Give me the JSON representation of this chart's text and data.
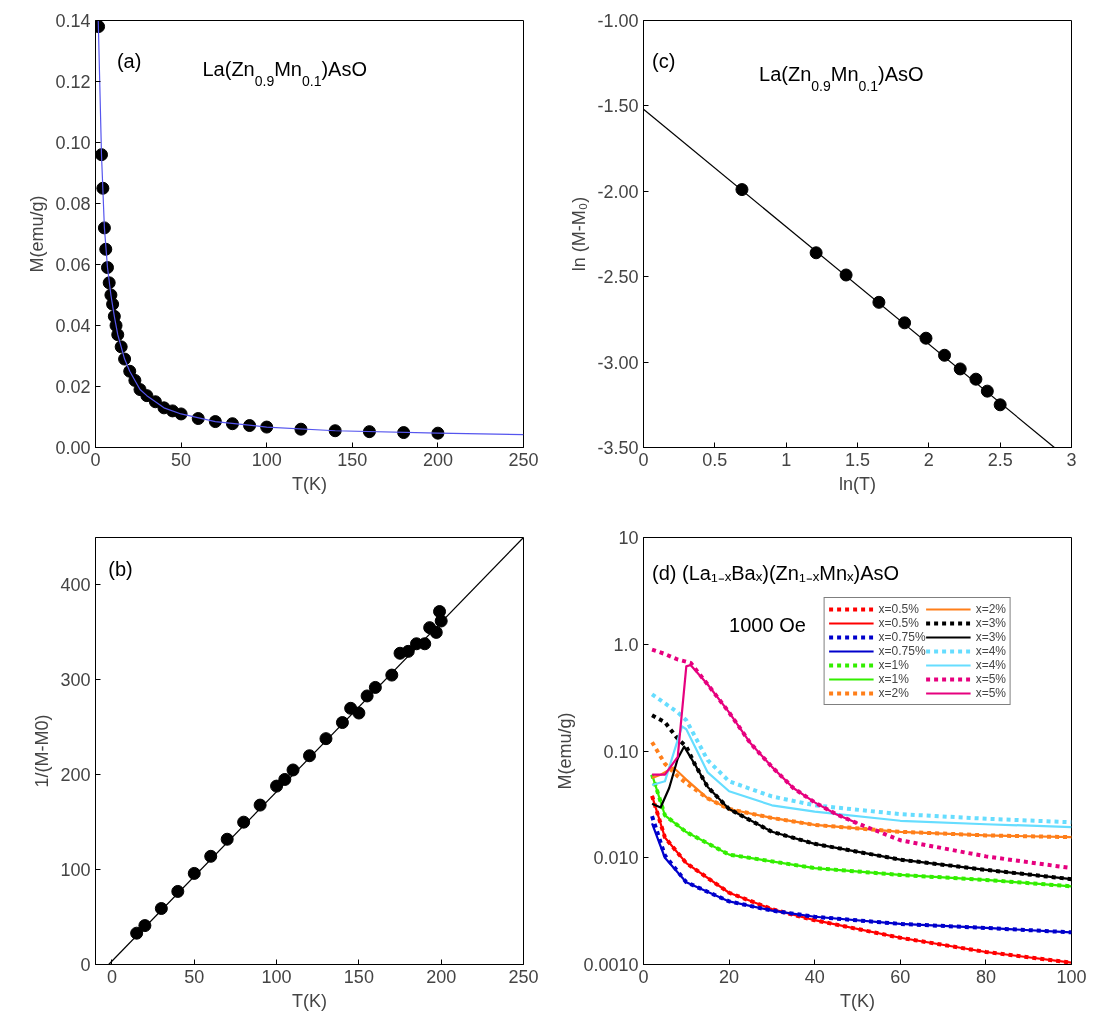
{
  "chart_data": [
    {
      "type": "scatter",
      "xlabel": "T(K)",
      "ylabel": "M(emu/g)",
      "annotations": [
        "(a)",
        "La(Zn$_{0.9}$Mn$_{0.1}$)AsO"
      ],
      "xlim": [
        0,
        250
      ],
      "ylim": [
        0,
        0.14
      ],
      "xticks": [
        0,
        50,
        100,
        150,
        200,
        250
      ],
      "yticks": [
        {
          "value": 0,
          "label": "0.00"
        },
        {
          "value": 0.02,
          "label": "0.02"
        },
        {
          "value": 0.04,
          "label": "0.04"
        },
        {
          "value": 0.06,
          "label": "0.06"
        },
        {
          "value": 0.08,
          "label": "0.08"
        },
        {
          "value": 0.1,
          "label": "0.10"
        },
        {
          "value": 0.12,
          "label": "0.12"
        },
        {
          "value": 0.14,
          "label": "0.14"
        }
      ],
      "grid": false,
      "legend": false,
      "series": [
        {
          "type": "scatter",
          "color": "#000000",
          "marker": "circle",
          "x": [
            1.8,
            3.5,
            4.3,
            5.2,
            6,
            7,
            8,
            9,
            10,
            11,
            12,
            13,
            15,
            17,
            20,
            23,
            26,
            30,
            35,
            40,
            45,
            50,
            60,
            70,
            80,
            90,
            100,
            120,
            140,
            160,
            180,
            200
          ],
          "values": [
            0.138,
            0.096,
            0.085,
            0.072,
            0.065,
            0.059,
            0.054,
            0.05,
            0.047,
            0.043,
            0.04,
            0.037,
            0.033,
            0.029,
            0.025,
            0.022,
            0.019,
            0.017,
            0.015,
            0.013,
            0.012,
            0.011,
            0.0095,
            0.0085,
            0.0078,
            0.0072,
            0.0067,
            0.006,
            0.0055,
            0.0052,
            0.0049,
            0.0047
          ]
        },
        {
          "type": "line",
          "color": "#5555ee",
          "marker": "none",
          "line_style": "solid",
          "x": [
            1.6,
            3.5,
            5.2,
            7,
            9,
            11,
            13,
            17,
            20,
            26,
            30,
            40,
            50,
            70,
            100,
            140,
            200,
            250
          ],
          "values": [
            0.14,
            0.096,
            0.072,
            0.059,
            0.05,
            0.043,
            0.037,
            0.029,
            0.025,
            0.019,
            0.017,
            0.013,
            0.011,
            0.0085,
            0.0067,
            0.0055,
            0.0047,
            0.0042
          ]
        }
      ]
    },
    {
      "type": "scatter",
      "xlabel": "ln(T)",
      "ylabel": "ln (M-M₀)",
      "annotations": [
        "(c)",
        "La(Zn$_{0.9}$Mn$_{0.1}$)AsO"
      ],
      "xlim": [
        0,
        3
      ],
      "ylim": [
        -3.5,
        -1.0
      ],
      "xticks": [
        0,
        0.5,
        1,
        1.5,
        2,
        2.5,
        3
      ],
      "yticks": [
        {
          "value": -3.5,
          "label": "-3.50"
        },
        {
          "value": -3.0,
          "label": "-3.00"
        },
        {
          "value": -2.5,
          "label": "-2.50"
        },
        {
          "value": -2.0,
          "label": "-2.00"
        },
        {
          "value": -1.5,
          "label": "-1.50"
        },
        {
          "value": -1.0,
          "label": "-1.00"
        }
      ],
      "grid": false,
      "legend": false,
      "series": [
        {
          "type": "scatter",
          "color": "#000000",
          "marker": "circle",
          "x": [
            0.69,
            1.21,
            1.42,
            1.65,
            1.83,
            1.98,
            2.11,
            2.22,
            2.33,
            2.41,
            2.5
          ],
          "values": [
            -1.99,
            -2.36,
            -2.49,
            -2.65,
            -2.77,
            -2.86,
            -2.96,
            -3.04,
            -3.1,
            -3.17,
            -3.25
          ]
        },
        {
          "type": "line",
          "color": "#000000",
          "marker": "none",
          "line_style": "solid",
          "x": [
            0,
            2.88
          ],
          "values": [
            -1.52,
            -3.5
          ]
        }
      ]
    },
    {
      "type": "scatter",
      "xlabel": "T(K)",
      "ylabel": "1/(M-M0)",
      "annotations": [
        "(b)"
      ],
      "xlim": [
        -10,
        250
      ],
      "ylim": [
        0,
        450
      ],
      "xticks": [
        0,
        50,
        100,
        150,
        200,
        250
      ],
      "yticks": [
        0,
        100,
        200,
        300,
        400
      ],
      "grid": false,
      "legend": false,
      "series": [
        {
          "type": "scatter",
          "color": "#000000",
          "marker": "circle",
          "x": [
            15,
            20,
            30,
            40,
            50,
            60,
            70,
            80,
            90,
            100,
            105,
            110,
            120,
            130,
            140,
            145,
            150,
            155,
            160,
            170,
            175,
            180,
            185,
            190,
            193,
            197,
            199,
            200
          ],
          "values": [
            33,
            41,
            59,
            77,
            96,
            114,
            132,
            150,
            168,
            188,
            195,
            205,
            220,
            238,
            255,
            270,
            265,
            283,
            292,
            305,
            328,
            330,
            338,
            338,
            355,
            350,
            372,
            362
          ]
        },
        {
          "type": "line",
          "color": "#000000",
          "marker": "none",
          "line_style": "solid",
          "x": [
            -2,
            250
          ],
          "values": [
            0,
            450
          ]
        }
      ]
    },
    {
      "type": "line",
      "xlabel": "T(K)",
      "ylabel": "M(emu/g)",
      "annotations": [
        "(d) (La₁₋ₓBaₓ)(Zn₁₋ₓMnₓ)AsO",
        "1000 Oe"
      ],
      "log": true,
      "xlim": [
        0,
        100
      ],
      "ylim": [
        0.001,
        10
      ],
      "xticks": [
        0,
        20,
        40,
        60,
        80,
        100
      ],
      "yticks": [
        {
          "value": 0.001,
          "label": "0.0010"
        },
        {
          "value": 0.01,
          "label": "0.010"
        },
        {
          "value": 0.1,
          "label": "0.10"
        },
        {
          "value": 1,
          "label": "1.0"
        },
        {
          "value": 10,
          "label": "10"
        }
      ],
      "grid": false,
      "legend": "top right",
      "marker": "none",
      "series": [
        {
          "name": "x=0.5%",
          "color": "#ff0000",
          "line_style": "dotted",
          "x": [
            2,
            5,
            10,
            20,
            30,
            40,
            60,
            80,
            100
          ],
          "values": [
            0.038,
            0.0155,
            0.0089,
            0.0047,
            0.0033,
            0.0026,
            0.00178,
            0.00131,
            0.00104
          ]
        },
        {
          "name": "x=0.5%",
          "color": "#ff0000",
          "line_style": "solid",
          "x": [
            2,
            5,
            10,
            20,
            30,
            40,
            60,
            80,
            100
          ],
          "values": [
            0.038,
            0.0155,
            0.0089,
            0.0047,
            0.0033,
            0.0026,
            0.00178,
            0.00131,
            0.00104
          ]
        },
        {
          "name": "x=0.75%",
          "color": "#0000cc",
          "line_style": "dotted",
          "x": [
            2,
            5,
            10,
            20,
            30,
            40,
            60,
            80,
            100
          ],
          "values": [
            0.0245,
            0.0105,
            0.0059,
            0.0039,
            0.0032,
            0.0028,
            0.0024,
            0.0022,
            0.002
          ]
        },
        {
          "name": "x=0.75%",
          "color": "#0000cc",
          "line_style": "solid",
          "x": [
            2,
            5,
            10,
            20,
            30,
            40,
            60,
            80,
            100
          ],
          "values": [
            0.021,
            0.01,
            0.0059,
            0.0039,
            0.0032,
            0.0028,
            0.0024,
            0.0022,
            0.002
          ]
        },
        {
          "name": "x=1%",
          "color": "#33ee00",
          "line_style": "dotted",
          "x": [
            2,
            5,
            10,
            20,
            40,
            60,
            80,
            100
          ],
          "values": [
            0.06,
            0.025,
            0.0174,
            0.0107,
            0.008,
            0.0069,
            0.0062,
            0.0054
          ]
        },
        {
          "name": "x=1%",
          "color": "#33ee00",
          "line_style": "solid",
          "x": [
            2,
            5,
            10,
            20,
            40,
            60,
            80,
            100
          ],
          "values": [
            0.06,
            0.025,
            0.0174,
            0.0107,
            0.008,
            0.0069,
            0.0062,
            0.0054
          ]
        },
        {
          "name": "x=2%",
          "color": "#ff7f1a",
          "line_style": "dotted",
          "x": [
            2,
            5,
            8,
            10,
            15,
            20,
            30,
            40,
            60,
            80,
            100
          ],
          "values": [
            0.121,
            0.076,
            0.058,
            0.05,
            0.036,
            0.0286,
            0.0236,
            0.0203,
            0.0175,
            0.0162,
            0.0156
          ]
        },
        {
          "name": "x=2%",
          "color": "#ff7f1a",
          "line_style": "solid",
          "x": [
            2,
            4,
            7,
            10,
            15,
            20,
            30,
            40,
            60,
            80,
            100
          ],
          "values": [
            0.056,
            0.06,
            0.07,
            0.054,
            0.036,
            0.0286,
            0.0236,
            0.0203,
            0.0175,
            0.0162,
            0.0156
          ]
        },
        {
          "name": "x=3%",
          "color": "#000000",
          "line_style": "dotted",
          "x": [
            2,
            5,
            8,
            10,
            12,
            15,
            20,
            30,
            40,
            60,
            80,
            100
          ],
          "values": [
            0.216,
            0.186,
            0.13,
            0.11,
            0.075,
            0.046,
            0.0286,
            0.0175,
            0.0135,
            0.0096,
            0.0077,
            0.0063
          ]
        },
        {
          "name": "x=3%",
          "color": "#000000",
          "line_style": "solid",
          "x": [
            2,
            4,
            6,
            8,
            9.5,
            12,
            15,
            20,
            30,
            40,
            60,
            80,
            100
          ],
          "values": [
            0.032,
            0.0296,
            0.045,
            0.085,
            0.11,
            0.075,
            0.046,
            0.0286,
            0.0175,
            0.0135,
            0.0096,
            0.0077,
            0.0063
          ]
        },
        {
          "name": "x=4%",
          "color": "#66ddff",
          "line_style": "dotted",
          "x": [
            2,
            5,
            8,
            10,
            15,
            20,
            30,
            40,
            60,
            80,
            100
          ],
          "values": [
            0.34,
            0.28,
            0.23,
            0.194,
            0.082,
            0.052,
            0.0375,
            0.031,
            0.0256,
            0.0232,
            0.0215
          ]
        },
        {
          "name": "x=4%",
          "color": "#66ddff",
          "line_style": "solid",
          "x": [
            2,
            5,
            8,
            9,
            10,
            15,
            20,
            30,
            40,
            60,
            80,
            100
          ],
          "values": [
            0.048,
            0.052,
            0.127,
            0.17,
            0.16,
            0.063,
            0.042,
            0.031,
            0.027,
            0.0222,
            0.0206,
            0.0194
          ]
        },
        {
          "name": "x=5%",
          "color": "#e6007e",
          "line_style": "dotted",
          "x": [
            2,
            5,
            8,
            11,
            15,
            20,
            25,
            30,
            35,
            40,
            45,
            50,
            60,
            80,
            100
          ],
          "values": [
            0.89,
            0.81,
            0.72,
            0.67,
            0.42,
            0.23,
            0.118,
            0.071,
            0.045,
            0.033,
            0.0256,
            0.021,
            0.0146,
            0.0103,
            0.008
          ]
        },
        {
          "name": "x=5%",
          "color": "#e6007e",
          "line_style": "solid",
          "x": [
            2,
            5,
            8,
            10,
            11,
            15,
            20,
            25,
            30,
            35,
            40,
            45,
            50
          ],
          "values": [
            0.06,
            0.06,
            0.088,
            0.62,
            0.64,
            0.42,
            0.23,
            0.118,
            0.071,
            0.045,
            0.033,
            0.0256,
            0.021
          ]
        }
      ]
    }
  ]
}
